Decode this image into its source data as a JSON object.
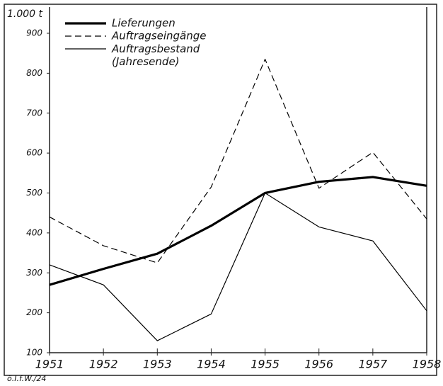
{
  "chart_data": {
    "type": "line",
    "y_label": "1.000 t",
    "x": [
      1951,
      1952,
      1953,
      1954,
      1955,
      1956,
      1957,
      1958
    ],
    "xlim": [
      1951,
      1958
    ],
    "xticks": [
      1951,
      1952,
      1953,
      1954,
      1955,
      1956,
      1957,
      1958
    ],
    "ylim": [
      100,
      900
    ],
    "yticks": [
      100,
      200,
      300,
      400,
      500,
      600,
      700,
      800,
      900
    ],
    "grid": false,
    "legend": "upper left",
    "series": [
      {
        "name": "Lieferungen",
        "color": "#000000",
        "style": "thick",
        "values": [
          270,
          310,
          348,
          418,
          500,
          528,
          540,
          518
        ]
      },
      {
        "name": "Auftragseingänge",
        "color": "#000000",
        "style": "dashed",
        "values": [
          440,
          368,
          325,
          515,
          835,
          512,
          602,
          435
        ]
      },
      {
        "name": "Auftragsbestand (Jahresende)",
        "color": "#000000",
        "style": "thin",
        "values": [
          320,
          270,
          130,
          197,
          500,
          415,
          380,
          205
        ]
      }
    ],
    "source": "ö.I.f.W./24"
  }
}
